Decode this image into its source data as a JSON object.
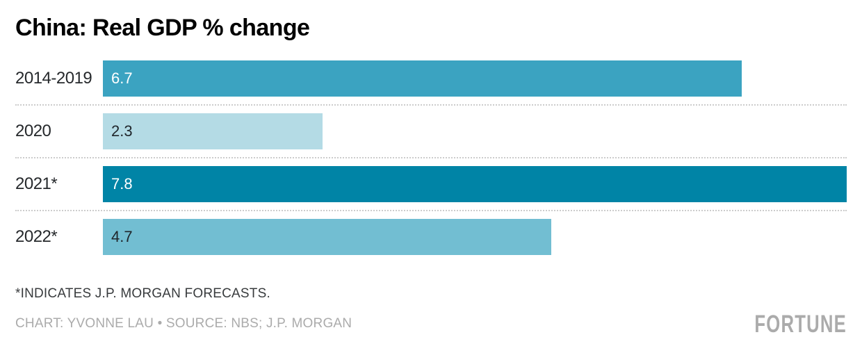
{
  "header": {
    "title": "China: Real GDP % change"
  },
  "chart_data": {
    "type": "bar",
    "orientation": "horizontal",
    "title": "China: Real GDP % change",
    "categories": [
      "2014-2019",
      "2020",
      "2021*",
      "2022*"
    ],
    "values": [
      6.7,
      2.3,
      7.8,
      4.7
    ],
    "value_labels": [
      "6.7",
      "2.3",
      "7.8",
      "4.7"
    ],
    "xlim": [
      0,
      7.8
    ],
    "grid": false,
    "legend": false,
    "bar_colors": [
      "#3ba3c1",
      "#b4dbe5",
      "#0084a6",
      "#72bed2"
    ],
    "value_label_colors": [
      "#ffffff",
      "#20262b",
      "#ffffff",
      "#20262b"
    ],
    "separator_color": "#cccccc"
  },
  "footer": {
    "footnote": "*INDICATES J.P. MORGAN FORECASTS.",
    "credit": "CHART: YVONNE LAU • SOURCE: NBS; J.P. MORGAN",
    "brand": "FORTUNE"
  }
}
